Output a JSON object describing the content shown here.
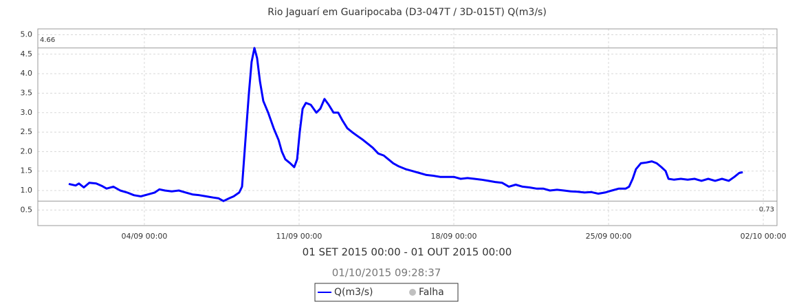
{
  "chart_data": {
    "type": "line",
    "title": "Rio Jaguarí em Guaripocaba (D3-047T / 3D-015T) Q(m3/s)",
    "xlabel": "01 SET 2015 00:00 - 01 OUT 2015 00:00",
    "timestamp": "01/10/2015 09:28:37",
    "x": [
      -0.42,
      -0.11,
      0.04,
      0.26,
      0.51,
      0.82,
      1.07,
      1.29,
      1.6,
      1.91,
      2.22,
      2.53,
      2.84,
      3.16,
      3.47,
      3.68,
      3.93,
      4.24,
      4.56,
      4.87,
      5.18,
      5.49,
      5.8,
      6.11,
      6.36,
      6.58,
      6.83,
      7.04,
      7.29,
      7.42,
      7.51,
      7.6,
      7.73,
      7.85,
      7.98,
      8.1,
      8.23,
      8.38,
      8.6,
      8.85,
      9.07,
      9.22,
      9.38,
      9.6,
      9.78,
      9.91,
      10.03,
      10.16,
      10.31,
      10.53,
      10.78,
      10.96,
      11.15,
      11.34,
      11.56,
      11.77,
      11.96,
      12.18,
      12.4,
      12.64,
      12.89,
      13.11,
      13.33,
      13.58,
      13.83,
      14.04,
      14.26,
      14.51,
      14.82,
      15.13,
      15.44,
      15.76,
      16.07,
      16.38,
      16.69,
      17.0,
      17.31,
      17.62,
      17.93,
      18.24,
      18.56,
      18.87,
      19.18,
      19.49,
      19.8,
      20.11,
      20.42,
      20.73,
      21.04,
      21.35,
      21.67,
      21.98,
      22.29,
      22.6,
      22.91,
      23.22,
      23.53,
      23.84,
      24.15,
      24.47,
      24.78,
      24.93,
      25.09,
      25.24,
      25.46,
      25.71,
      25.96,
      26.18,
      26.39,
      26.58,
      26.71,
      26.95,
      27.27,
      27.58,
      27.89,
      28.2,
      28.51,
      28.82,
      29.13,
      29.44,
      29.69,
      29.91,
      30.07
    ],
    "series": [
      {
        "name": "Q(m3/s)",
        "color": "#0000ff",
        "values": [
          1.17,
          1.13,
          1.18,
          1.08,
          1.2,
          1.18,
          1.12,
          1.05,
          1.1,
          1.0,
          0.95,
          0.88,
          0.85,
          0.9,
          0.95,
          1.03,
          1.0,
          0.98,
          1.0,
          0.95,
          0.9,
          0.88,
          0.85,
          0.82,
          0.8,
          0.73,
          0.8,
          0.85,
          0.95,
          1.1,
          1.8,
          2.5,
          3.5,
          4.3,
          4.66,
          4.4,
          3.8,
          3.3,
          3.0,
          2.6,
          2.3,
          2.0,
          1.8,
          1.7,
          1.6,
          1.8,
          2.5,
          3.1,
          3.25,
          3.2,
          3.0,
          3.1,
          3.35,
          3.2,
          3.0,
          3.0,
          2.8,
          2.6,
          2.5,
          2.4,
          2.3,
          2.2,
          2.1,
          1.95,
          1.9,
          1.8,
          1.7,
          1.62,
          1.55,
          1.5,
          1.45,
          1.4,
          1.38,
          1.35,
          1.35,
          1.35,
          1.3,
          1.32,
          1.3,
          1.28,
          1.25,
          1.22,
          1.2,
          1.1,
          1.15,
          1.1,
          1.08,
          1.05,
          1.05,
          1.0,
          1.02,
          1.0,
          0.98,
          0.97,
          0.95,
          0.96,
          0.92,
          0.95,
          1.0,
          1.05,
          1.05,
          1.1,
          1.3,
          1.55,
          1.7,
          1.72,
          1.75,
          1.7,
          1.6,
          1.5,
          1.3,
          1.28,
          1.3,
          1.28,
          1.3,
          1.25,
          1.3,
          1.25,
          1.3,
          1.25,
          1.35,
          1.45,
          1.47
        ]
      }
    ],
    "legend_extra": {
      "name": "Falha",
      "color": "#c0c0c0"
    },
    "ref_lines": [
      {
        "value": 4.66,
        "label": "4.66"
      },
      {
        "value": 0.73,
        "label": "0.73"
      }
    ],
    "xlim": [
      -1.82,
      31.62
    ],
    "xticks": [
      {
        "value": 3,
        "label": "04/09 00:00"
      },
      {
        "value": 10,
        "label": "11/09 00:00"
      },
      {
        "value": 17,
        "label": "18/09 00:00"
      },
      {
        "value": 24,
        "label": "25/09 00:00"
      },
      {
        "value": 31,
        "label": "02/10 00:00"
      }
    ],
    "ylim": [
      0.1,
      5.15
    ],
    "yticks": [
      0.5,
      {
        "value": 1,
        "label": "1.0"
      },
      1.5,
      {
        "value": 2,
        "label": "2.0"
      },
      2.5,
      {
        "value": 3,
        "label": "3.0"
      },
      3.5,
      {
        "value": 4,
        "label": "4.0"
      },
      4.5,
      {
        "value": 5,
        "label": "5.0"
      }
    ],
    "grid": true
  }
}
